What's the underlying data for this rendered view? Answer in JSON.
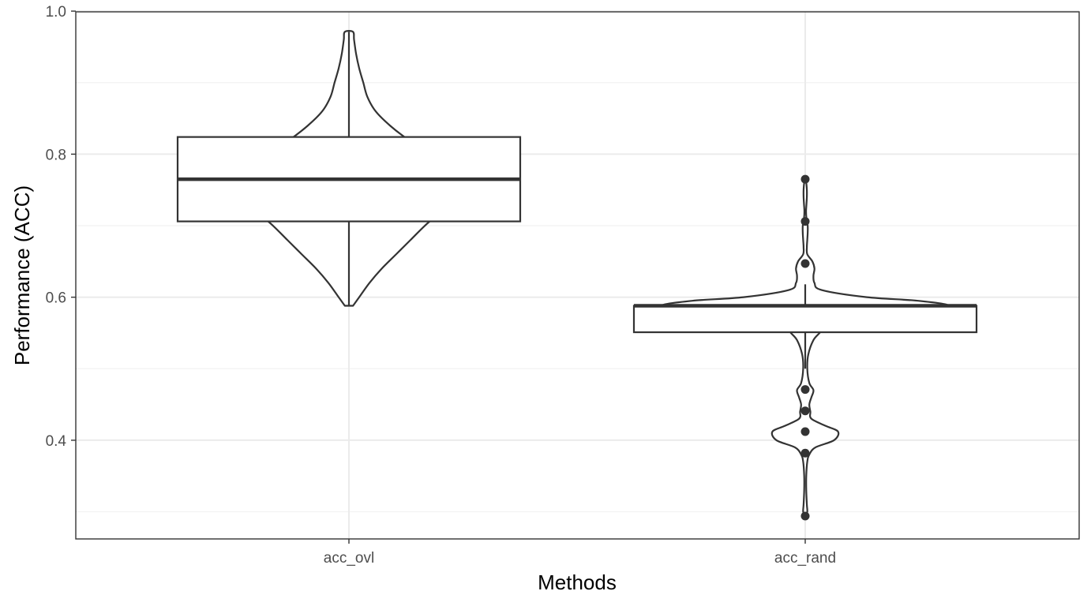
{
  "chart_data": {
    "type": "violin+box",
    "xlabel": "Methods",
    "ylabel": "Performance (ACC)",
    "categories": [
      "acc_ovl",
      "acc_rand"
    ],
    "y_ticks": [
      {
        "value": 0.4,
        "label": "0.4"
      },
      {
        "value": 0.6,
        "label": "0.6"
      },
      {
        "value": 0.8,
        "label": "0.8"
      },
      {
        "value": 1.0,
        "label": "1.0"
      }
    ],
    "ylim": [
      0.262,
      0.999
    ],
    "grid": true,
    "colors": {
      "panel_border": "#333333",
      "grid_major": "#ebebeb",
      "grid_minor": "#f2f2f2",
      "shape_stroke": "#333333",
      "fill": "#ffffff"
    },
    "groups": [
      {
        "name": "acc_ovl",
        "box": {
          "q1": 0.706,
          "median": 0.765,
          "q3": 0.824,
          "whisker_low": 0.588,
          "whisker_high": 0.971
        },
        "outliers": [],
        "violin": [
          [
            0.588,
            0.02
          ],
          [
            0.6,
            0.05
          ],
          [
            0.62,
            0.1
          ],
          [
            0.64,
            0.16
          ],
          [
            0.66,
            0.23
          ],
          [
            0.68,
            0.3
          ],
          [
            0.7,
            0.37
          ],
          [
            0.72,
            0.45
          ],
          [
            0.74,
            0.52
          ],
          [
            0.76,
            0.55
          ],
          [
            0.78,
            0.5
          ],
          [
            0.8,
            0.4
          ],
          [
            0.82,
            0.29
          ],
          [
            0.84,
            0.2
          ],
          [
            0.86,
            0.13
          ],
          [
            0.88,
            0.09
          ],
          [
            0.9,
            0.07
          ],
          [
            0.92,
            0.05
          ],
          [
            0.94,
            0.035
          ],
          [
            0.96,
            0.025
          ],
          [
            0.971,
            0.02
          ]
        ]
      },
      {
        "name": "acc_rand",
        "box": {
          "q1": 0.551,
          "median": 0.588,
          "q3": 0.588,
          "whisker_low": 0.5,
          "whisker_high": 0.618
        },
        "outliers": [
          0.765,
          0.706,
          0.647,
          0.471,
          0.441,
          0.412,
          0.382,
          0.294
        ],
        "violin": [
          [
            0.294,
            0.0
          ],
          [
            0.3,
            0.01
          ],
          [
            0.31,
            0.008
          ],
          [
            0.33,
            0.005
          ],
          [
            0.35,
            0.005
          ],
          [
            0.37,
            0.01
          ],
          [
            0.38,
            0.02
          ],
          [
            0.39,
            0.05
          ],
          [
            0.4,
            0.14
          ],
          [
            0.412,
            0.16
          ],
          [
            0.42,
            0.1
          ],
          [
            0.43,
            0.03
          ],
          [
            0.44,
            0.025
          ],
          [
            0.45,
            0.02
          ],
          [
            0.46,
            0.03
          ],
          [
            0.47,
            0.04
          ],
          [
            0.48,
            0.02
          ],
          [
            0.5,
            0.01
          ],
          [
            0.52,
            0.015
          ],
          [
            0.54,
            0.04
          ],
          [
            0.55,
            0.07
          ],
          [
            0.56,
            0.1
          ],
          [
            0.57,
            0.2
          ],
          [
            0.58,
            0.55
          ],
          [
            0.588,
            0.7
          ],
          [
            0.595,
            0.55
          ],
          [
            0.6,
            0.3
          ],
          [
            0.61,
            0.08
          ],
          [
            0.62,
            0.045
          ],
          [
            0.63,
            0.04
          ],
          [
            0.64,
            0.045
          ],
          [
            0.65,
            0.035
          ],
          [
            0.66,
            0.01
          ],
          [
            0.67,
            0.008
          ],
          [
            0.68,
            0.01
          ],
          [
            0.69,
            0.012
          ],
          [
            0.7,
            0.012
          ],
          [
            0.71,
            0.006
          ],
          [
            0.72,
            0.004
          ],
          [
            0.73,
            0.006
          ],
          [
            0.74,
            0.008
          ],
          [
            0.75,
            0.008
          ],
          [
            0.76,
            0.005
          ],
          [
            0.765,
            0.0
          ]
        ]
      }
    ]
  }
}
